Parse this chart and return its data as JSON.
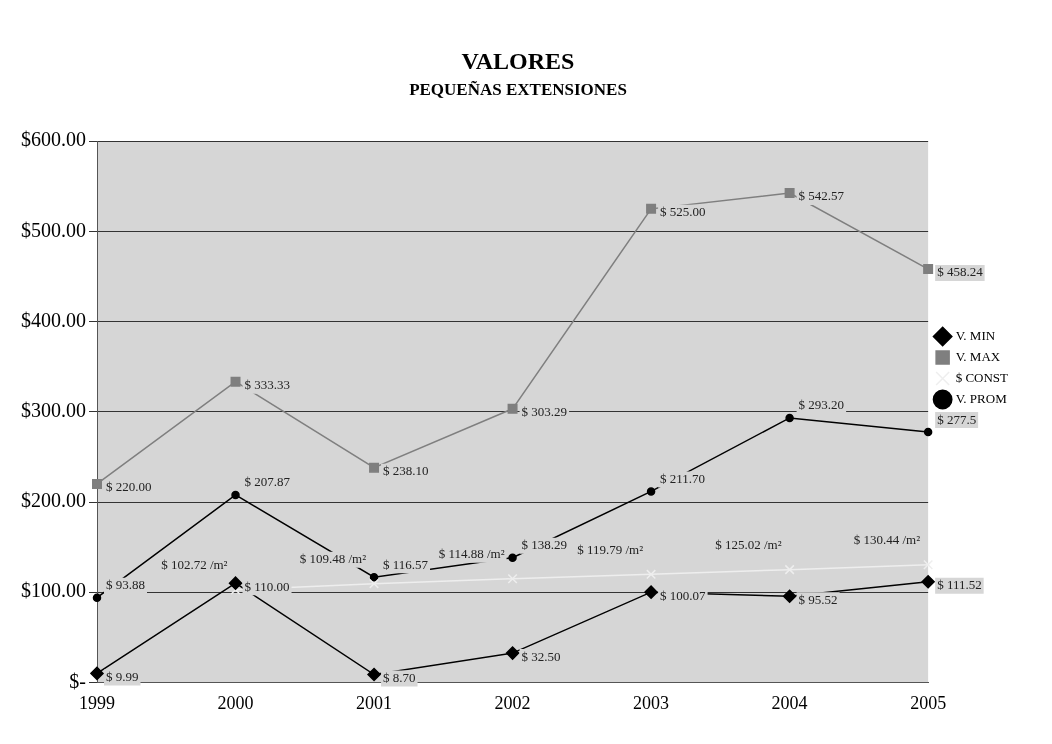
{
  "chart_data": {
    "type": "line",
    "title": "VALORES",
    "subtitle": "PEQUEÑAS EXTENSIONES",
    "categories": [
      "1999",
      "2000",
      "2001",
      "2002",
      "2003",
      "2004",
      "2005"
    ],
    "series": [
      {
        "name": "V. MIN",
        "color": "#000000",
        "marker": "diamond",
        "values": [
          9.99,
          110.0,
          8.7,
          32.5,
          100.07,
          95.52,
          111.52
        ],
        "value_labels": [
          "$ 9.99",
          "$ 110.00",
          "$ 8.70",
          "$ 32.50",
          "$ 100.07",
          "$ 95.52",
          "$ 111.52"
        ]
      },
      {
        "name": "V. MAX",
        "color": "#7f7f7f",
        "marker": "square",
        "values": [
          220.0,
          333.33,
          238.1,
          303.29,
          525.0,
          542.57,
          458.24
        ],
        "value_labels": [
          "$ 220.00",
          "$ 333.33",
          "$ 238.10",
          "$ 303.29",
          "$ 525.00",
          "$ 542.57",
          "$ 458.24"
        ]
      },
      {
        "name": "$ CONST",
        "color": "#eeeeee",
        "marker": "cross",
        "values": [
          null,
          102.72,
          109.48,
          114.88,
          119.79,
          125.02,
          130.44
        ],
        "value_labels": [
          null,
          "$ 102.72 /m²",
          "$ 109.48 /m²",
          "$ 114.88 /m²",
          "$ 119.79 /m²",
          "$ 125.02 /m²",
          "$ 130.44 /m²"
        ]
      },
      {
        "name": "V. PROM",
        "color": "#000000",
        "marker": "circle",
        "values": [
          93.88,
          207.87,
          116.57,
          138.29,
          211.7,
          293.2,
          277.5
        ],
        "value_labels": [
          "$ 93.88",
          "$ 207.87",
          "$ 116.57",
          "$ 138.29",
          "$ 211.70",
          "$ 293.20",
          "$ 277.5"
        ]
      }
    ],
    "ylim": [
      0,
      600
    ],
    "yticks": [
      {
        "value": 0,
        "label": "$-"
      },
      {
        "value": 100,
        "label": "$100.00"
      },
      {
        "value": 200,
        "label": "$200.00"
      },
      {
        "value": 300,
        "label": "$300.00"
      },
      {
        "value": 400,
        "label": "$400.00"
      },
      {
        "value": 500,
        "label": "$500.00"
      },
      {
        "value": 600,
        "label": "$600.00"
      }
    ],
    "grid": "y",
    "legend": "right"
  }
}
